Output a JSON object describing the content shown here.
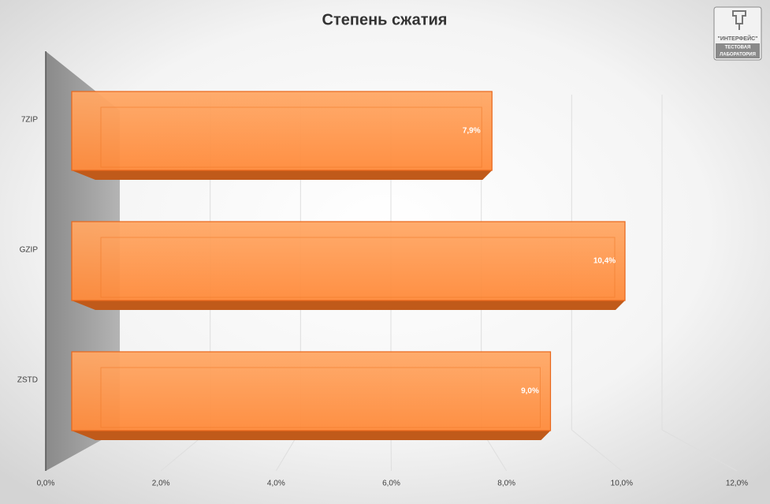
{
  "chart_data": {
    "type": "bar3d",
    "title": "Степень сжатия",
    "categories": [
      "7ZIP",
      "GZIP",
      "ZSTD"
    ],
    "values": [
      7.9,
      10.4,
      9.0
    ],
    "value_labels": [
      "7,9%",
      "10,4%",
      "9,0%"
    ],
    "color": "#ff8c3c",
    "xlim": [
      0,
      12
    ],
    "xticks": [
      {
        "value": 0,
        "label": "0,0%"
      },
      {
        "value": 2,
        "label": "2,0%"
      },
      {
        "value": 4,
        "label": "4,0%"
      },
      {
        "value": 6,
        "label": "6,0%"
      },
      {
        "value": 8,
        "label": "8,0%"
      },
      {
        "value": 10,
        "label": "10,0%"
      },
      {
        "value": 12,
        "label": "12,0%"
      }
    ],
    "grid": true
  },
  "logo": {
    "brand": "\"ИНТЕРФЕЙС\"",
    "line1": "ТЕСТОВАЯ",
    "line2": "ЛАБОРАТОРИЯ"
  }
}
